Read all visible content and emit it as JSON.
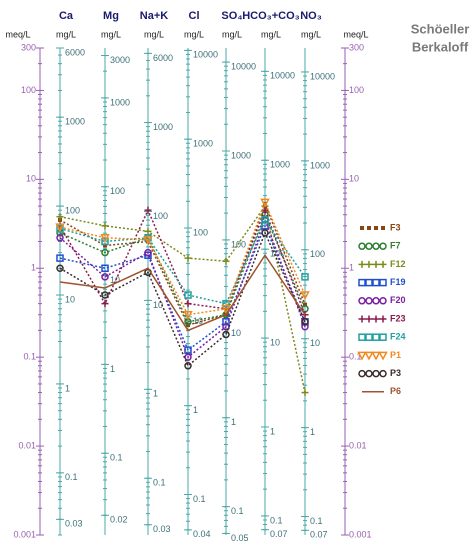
{
  "chart_data": {
    "type": "schoeller",
    "log_scale": true,
    "title": "Schöeller",
    "subtitle": "Berkaloff",
    "categories": [
      "Ca",
      "Mg",
      "Na+K",
      "Cl",
      "SO₄",
      "HCO₃+CO₃",
      "NO₃"
    ],
    "left_axis": {
      "label": "meq/L",
      "color": "#9a5fb0",
      "ylim": [
        0.001,
        300
      ],
      "yticks": [
        300,
        100,
        10,
        1,
        0.1,
        0.01,
        0.001
      ]
    },
    "right_axis": {
      "label": "meq/L",
      "color": "#9a5fb0",
      "ylim": [
        0.001,
        300
      ],
      "yticks": [
        300,
        100,
        10,
        1,
        0.1,
        0.01,
        0.001
      ]
    },
    "ion_axes": [
      {
        "label": "mg/L",
        "color": "#4aa8a8",
        "ylim": [
          0.02,
          6000
        ],
        "yticks": [
          6000,
          1000,
          100,
          10,
          1,
          0.1,
          0.03
        ]
      },
      {
        "label": "mg/L",
        "color": "#4aa8a8",
        "ylim": [
          0.012,
          3646
        ],
        "yticks": [
          3000,
          1000,
          100,
          10,
          1,
          0.1,
          0.02
        ]
      },
      {
        "label": "mg/L",
        "color": "#4aa8a8",
        "ylim": [
          0.023,
          6900
        ],
        "yticks": [
          6000,
          1000,
          100,
          10,
          1,
          0.1,
          0.03
        ]
      },
      {
        "label": "mg/L",
        "color": "#4aa8a8",
        "ylim": [
          0.035,
          10635
        ],
        "yticks": [
          10000,
          1000,
          100,
          10,
          1,
          0.1,
          0.04
        ]
      },
      {
        "label": "mg/L",
        "color": "#4aa8a8",
        "ylim": [
          0.048,
          14400
        ],
        "yticks": [
          10000,
          1000,
          100,
          10,
          1,
          0.1,
          0.05
        ]
      },
      {
        "label": "mg/L",
        "color": "#4aa8a8",
        "ylim": [
          0.061,
          18300
        ],
        "yticks": [
          10000,
          1000,
          100,
          10,
          1,
          0.1,
          0.07
        ]
      },
      {
        "label": "mg/L",
        "color": "#4aa8a8",
        "ylim": [
          0.062,
          18600
        ],
        "yticks": [
          10000,
          1000,
          100,
          10,
          1,
          0.1,
          0.07
        ]
      }
    ],
    "series": [
      {
        "name": "F3",
        "color": "#8b4513",
        "marker": "dot",
        "line": "dotted",
        "values": [
          3.5,
          1.8,
          2.0,
          0.23,
          0.3,
          5.3,
          0.39
        ]
      },
      {
        "name": "F7",
        "color": "#2e7d32",
        "marker": "circle",
        "line": "dotted",
        "values": [
          2.5,
          1.5,
          2.2,
          0.25,
          0.3,
          4.0,
          0.35
        ]
      },
      {
        "name": "F12",
        "color": "#7a8a1a",
        "marker": "plus",
        "line": "dotted",
        "values": [
          3.8,
          3.0,
          2.6,
          1.3,
          1.2,
          5.0,
          0.04
        ]
      },
      {
        "name": "F19",
        "color": "#1f4fd0",
        "marker": "square",
        "line": "dotted",
        "values": [
          1.3,
          1.0,
          1.4,
          0.12,
          0.25,
          3.0,
          0.25
        ]
      },
      {
        "name": "F20",
        "color": "#7b1fa2",
        "marker": "circle",
        "line": "dotted",
        "values": [
          2.2,
          0.8,
          1.5,
          0.1,
          0.22,
          3.5,
          0.22
        ]
      },
      {
        "name": "F23",
        "color": "#8b1a4a",
        "marker": "plus",
        "line": "dotted",
        "values": [
          3.0,
          0.4,
          4.5,
          0.4,
          0.35,
          4.5,
          0.3
        ]
      },
      {
        "name": "F24",
        "color": "#20a0a0",
        "marker": "square",
        "line": "dotted",
        "values": [
          2.8,
          2.0,
          2.2,
          0.5,
          0.4,
          3.5,
          0.8
        ]
      },
      {
        "name": "P1",
        "color": "#f08a20",
        "marker": "triangle",
        "line": "dotted",
        "values": [
          2.9,
          2.2,
          2.1,
          0.3,
          0.35,
          5.5,
          0.5
        ]
      },
      {
        "name": "P3",
        "color": "#3a2a2a",
        "marker": "circle",
        "line": "dotted",
        "values": [
          1.0,
          0.5,
          0.9,
          0.08,
          0.18,
          2.5,
          0.25
        ]
      },
      {
        "name": "P6",
        "color": "#a0522d",
        "marker": "none",
        "line": "solid",
        "values": [
          0.7,
          0.6,
          1.0,
          0.2,
          0.3,
          1.4,
          0.3
        ]
      }
    ]
  }
}
